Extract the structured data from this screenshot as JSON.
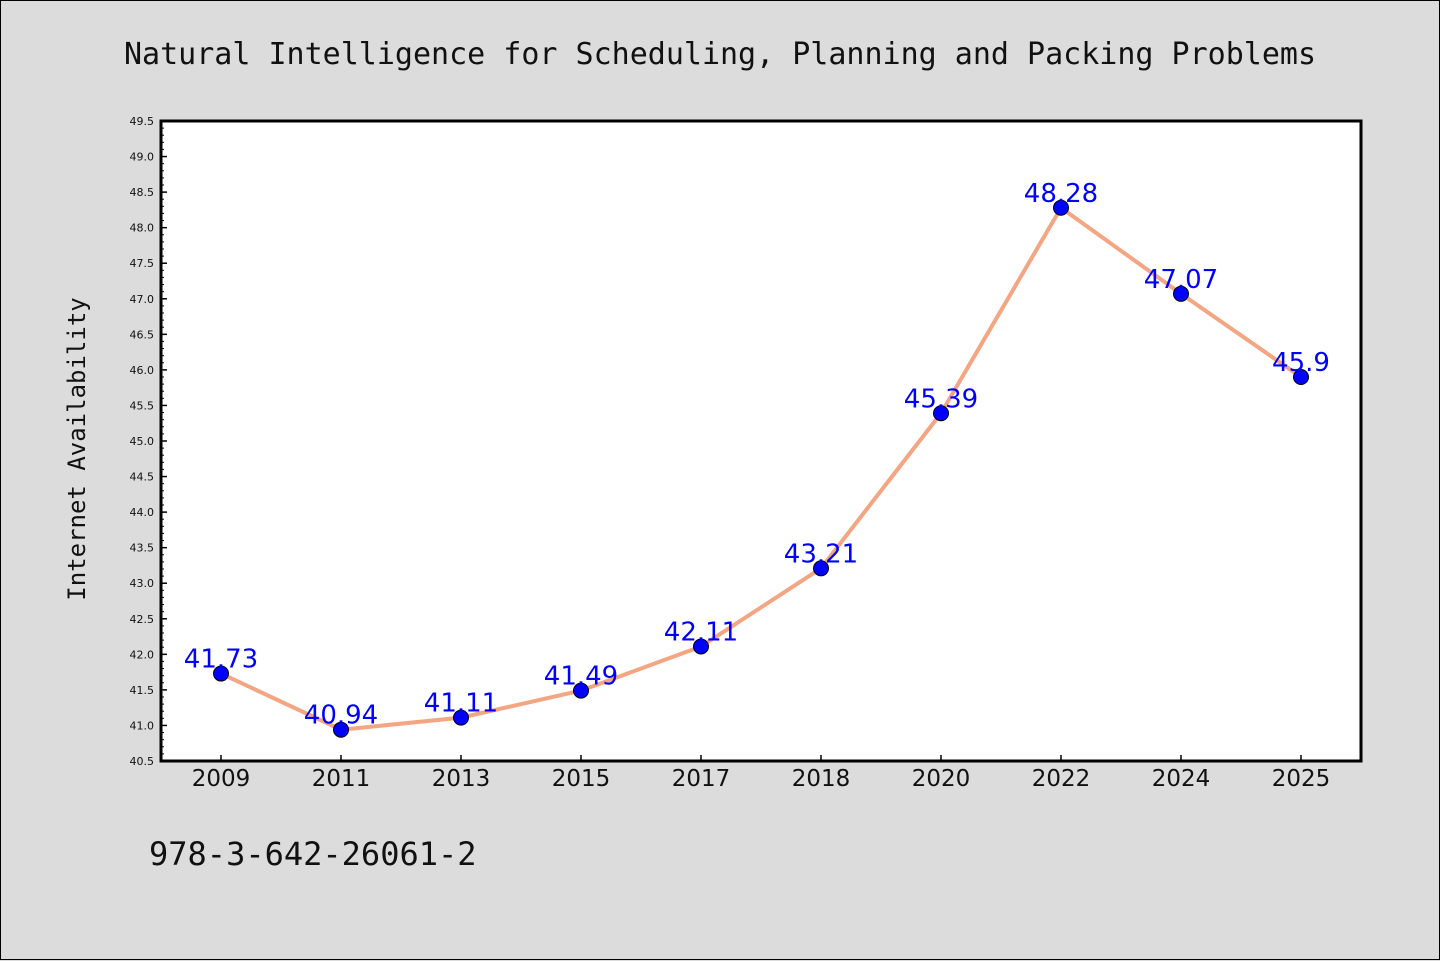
{
  "chart_data": {
    "type": "line",
    "title": "Natural Intelligence for Scheduling, Planning and Packing Problems",
    "xlabel": "",
    "ylabel": "Internet Availability",
    "categories": [
      "2009",
      "2011",
      "2013",
      "2015",
      "2017",
      "2018",
      "2020",
      "2022",
      "2024",
      "2025"
    ],
    "series": [
      {
        "values": [
          41.73,
          40.94,
          41.11,
          41.49,
          42.11,
          43.21,
          45.39,
          48.28,
          47.07,
          45.9
        ],
        "data_labels": [
          "41.73",
          "40.94",
          "41.11",
          "41.49",
          "42.11",
          "43.21",
          "45.39",
          "48.28",
          "47.07",
          "45.9"
        ]
      }
    ],
    "ylim": [
      40.5,
      49.5
    ],
    "yticks": [
      "40.5",
      "41.0",
      "41.5",
      "42.0",
      "42.5",
      "43.0",
      "43.5",
      "44.0",
      "44.5",
      "45.0",
      "45.5",
      "46.0",
      "46.5",
      "47.0",
      "47.5",
      "48.0",
      "48.5",
      "49.0",
      "49.5"
    ],
    "grid": false,
    "line_color": "#f4a582",
    "marker_color": "#0000ff",
    "label_color": "#0000ff",
    "plot_background": "#ffffff",
    "figure_background": "#dcdcdc"
  },
  "footer": {
    "isbn": "978-3-642-26061-2"
  }
}
